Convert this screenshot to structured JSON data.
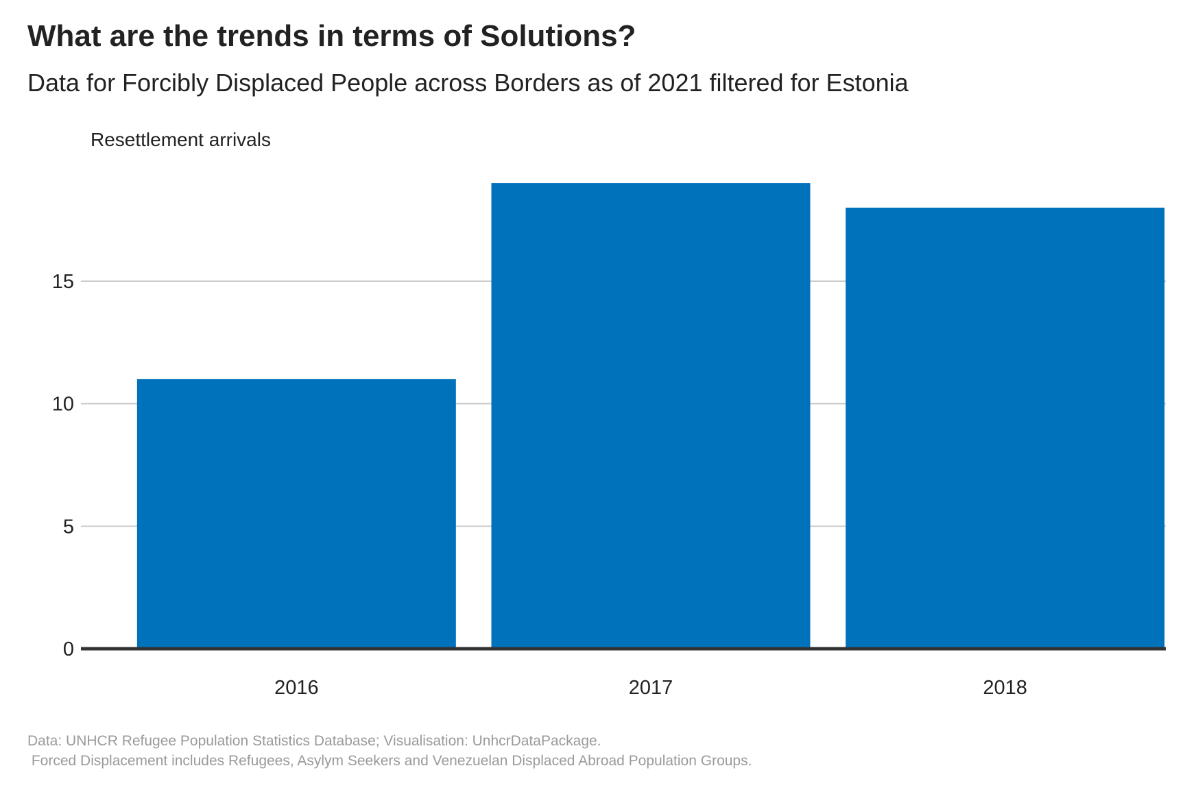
{
  "title": "What are the trends in terms of Solutions?",
  "subtitle": "Data for Forcibly Displaced People across Borders as of 2021 filtered for Estonia",
  "caption_line1": "Data: UNHCR Refugee Population Statistics Database; Visualisation: UnhcrDataPackage.",
  "caption_line2": " Forced Displacement includes Refugees, Asylym Seekers and Venezuelan Displaced Abroad Population Groups.",
  "colors": {
    "bar": "#0072bc",
    "grid": "#cccccc",
    "baseline": "#333333",
    "text": "#222222",
    "caption": "#9a9a9a"
  },
  "chart_data": {
    "type": "bar",
    "title": "What are the trends in terms of Solutions?",
    "subtitle": "Data for Forcibly Displaced People across Borders as of 2021 filtered for Estonia",
    "ylabel": "Resettlement arrivals",
    "xlabel": "",
    "categories": [
      "2016",
      "2017",
      "2018"
    ],
    "values": [
      11,
      19,
      18
    ],
    "ylim": [
      0,
      20
    ],
    "yticks": [
      0,
      5,
      10,
      15
    ],
    "grid": "horizontal",
    "legend": "none"
  }
}
